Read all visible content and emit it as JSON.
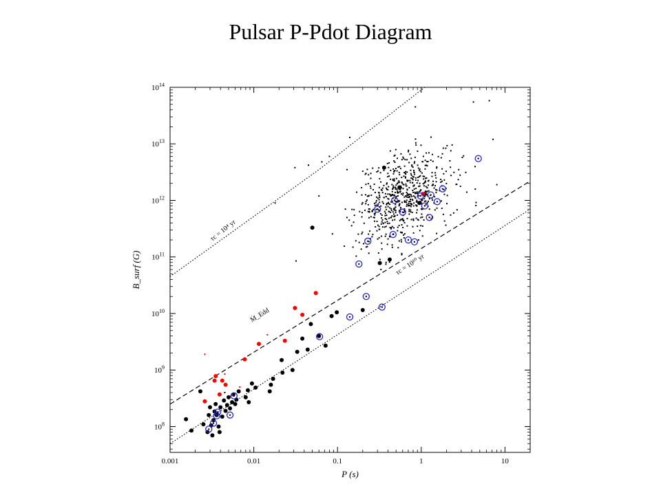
{
  "slide": {
    "title": "Pulsar P-Pdot Diagram"
  },
  "chart_data": {
    "type": "scatter",
    "title": "",
    "xlabel": "P  (s)",
    "ylabel": "B_surf  (G)",
    "x_scale": "log",
    "y_scale": "log",
    "xlim": [
      0.001,
      20
    ],
    "ylim": [
      35000000.0,
      100000000000000.0
    ],
    "grid": false,
    "x_ticks": [
      {
        "value": 0.001,
        "label": "0.001"
      },
      {
        "value": 0.01,
        "label": "0.01"
      },
      {
        "value": 0.1,
        "label": "0.1"
      },
      {
        "value": 1,
        "label": "1"
      },
      {
        "value": 10,
        "label": "10"
      }
    ],
    "y_ticks": [
      {
        "value": 100000000.0,
        "base": "10",
        "exp": "8"
      },
      {
        "value": 1000000000.0,
        "base": "10",
        "exp": "9"
      },
      {
        "value": 10000000000.0,
        "base": "10",
        "exp": "10"
      },
      {
        "value": 100000000000.0,
        "base": "10",
        "exp": "11"
      },
      {
        "value": 1000000000000.0,
        "base": "10",
        "exp": "12"
      },
      {
        "value": 10000000000000.0,
        "base": "10",
        "exp": "13"
      },
      {
        "value": 100000000000000.0,
        "base": "10",
        "exp": "14"
      }
    ],
    "reference_lines": [
      {
        "label": "τc = 10⁴ yr",
        "style": "dotted",
        "x": [
          0.001,
          0.06,
          1.1
        ],
        "y": [
          45000000000.0,
          3500000000000.0,
          100000000000000.0
        ]
      },
      {
        "label": "Ṁ_Edd",
        "style": "dashed",
        "x": [
          0.001,
          20
        ],
        "y": [
          250000000.0,
          2200000000000.0
        ]
      },
      {
        "label": "τc = 10¹⁰ yr",
        "style": "dotted",
        "x": [
          0.001,
          20
        ],
        "y": [
          50000000.0,
          700000000000.0
        ]
      }
    ],
    "annotations": [
      {
        "text": "τc = 10⁴ yr",
        "x": 0.0032,
        "y": 190000000000.0
      },
      {
        "text": "Ṁ_Edd",
        "x": 0.0095,
        "y": 7000000000.0
      },
      {
        "text": "τc = 10¹⁰ yr",
        "x": 0.52,
        "y": 48000000000.0
      }
    ],
    "series": [
      {
        "kind": "isolated",
        "color": "#000000",
        "marker": "small-dot",
        "cluster": {
          "count": 650,
          "x_center_log10": -0.22,
          "x_spread_log10": 0.28,
          "y_center_log10": 12.05,
          "y_spread_log10": 0.38,
          "seed": 7
        },
        "points": [
          {
            "x": 0.0045,
            "y": 400000000.0
          },
          {
            "x": 0.018,
            "y": 900000000000.0
          },
          {
            "x": 0.031,
            "y": 3800000000000.0
          },
          {
            "x": 0.032,
            "y": 85000000000.0
          },
          {
            "x": 0.045,
            "y": 4200000000000.0
          },
          {
            "x": 0.06,
            "y": 1200000000000.0
          },
          {
            "x": 0.065,
            "y": 4800000000000.0
          },
          {
            "x": 0.08,
            "y": 6000000000000.0
          },
          {
            "x": 0.14,
            "y": 13000000000000.0
          },
          {
            "x": 0.13,
            "y": 3500000000000.0
          },
          {
            "x": 0.85,
            "y": 45000000000000.0
          },
          {
            "x": 4.2,
            "y": 55000000000000.0
          },
          {
            "x": 6.5,
            "y": 58000000000000.0
          },
          {
            "x": 8.0,
            "y": 1900000000000.0
          },
          {
            "x": 7.2,
            "y": 12000000000000.0
          },
          {
            "x": 0.25,
            "y": 3000000000000.0
          },
          {
            "x": 0.22,
            "y": 150000000000.0
          },
          {
            "x": 0.38,
            "y": 80000000000.0
          },
          {
            "x": 0.9,
            "y": 350000000000.0
          },
          {
            "x": 3.5,
            "y": 1400000000000.0
          },
          {
            "x": 2.8,
            "y": 3500000000000.0
          },
          {
            "x": 1.5,
            "y": 2500000000000.0
          },
          {
            "x": 0.33,
            "y": 60000000000.0
          }
        ]
      },
      {
        "kind": "binary",
        "color": "#000000",
        "marker": "filled-circle",
        "points": [
          {
            "x": 0.00155,
            "y": 135000000.0
          },
          {
            "x": 0.0018,
            "y": 85000000.0
          },
          {
            "x": 0.0023,
            "y": 420000000.0
          },
          {
            "x": 0.0025,
            "y": 110000000.0
          },
          {
            "x": 0.0028,
            "y": 80000000.0
          },
          {
            "x": 0.0029,
            "y": 160000000.0
          },
          {
            "x": 0.003,
            "y": 220000000.0
          },
          {
            "x": 0.0031,
            "y": 105000000.0
          },
          {
            "x": 0.0032,
            "y": 70000000.0
          },
          {
            "x": 0.0033,
            "y": 130000000.0
          },
          {
            "x": 0.0034,
            "y": 185000000.0
          },
          {
            "x": 0.0035,
            "y": 250000000.0
          },
          {
            "x": 0.0036,
            "y": 160000000.0
          },
          {
            "x": 0.0038,
            "y": 100000000.0
          },
          {
            "x": 0.0039,
            "y": 80000000.0
          },
          {
            "x": 0.004,
            "y": 220000000.0
          },
          {
            "x": 0.0042,
            "y": 150000000.0
          },
          {
            "x": 0.0044,
            "y": 290000000.0
          },
          {
            "x": 0.0046,
            "y": 190000000.0
          },
          {
            "x": 0.0048,
            "y": 240000000.0
          },
          {
            "x": 0.005,
            "y": 330000000.0
          },
          {
            "x": 0.0052,
            "y": 210000000.0
          },
          {
            "x": 0.0055,
            "y": 270000000.0
          },
          {
            "x": 0.0057,
            "y": 370000000.0
          },
          {
            "x": 0.006,
            "y": 250000000.0
          },
          {
            "x": 0.0062,
            "y": 300000000.0
          },
          {
            "x": 0.0066,
            "y": 420000000.0
          },
          {
            "x": 0.008,
            "y": 330000000.0
          },
          {
            "x": 0.0085,
            "y": 440000000.0
          },
          {
            "x": 0.0087,
            "y": 270000000.0
          },
          {
            "x": 0.0095,
            "y": 580000000.0
          },
          {
            "x": 0.0105,
            "y": 490000000.0
          },
          {
            "x": 0.0155,
            "y": 420000000.0
          },
          {
            "x": 0.016,
            "y": 550000000.0
          },
          {
            "x": 0.017,
            "y": 700000000.0
          },
          {
            "x": 0.0215,
            "y": 1500000000.0
          },
          {
            "x": 0.022,
            "y": 900000000.0
          },
          {
            "x": 0.029,
            "y": 1000000000.0
          },
          {
            "x": 0.033,
            "y": 2100000000.0
          },
          {
            "x": 0.038,
            "y": 3600000000.0
          },
          {
            "x": 0.044,
            "y": 2300000000.0
          },
          {
            "x": 0.048,
            "y": 6500000000.0
          },
          {
            "x": 0.05,
            "y": 330000000000.0
          },
          {
            "x": 0.06,
            "y": 4000000000.0
          },
          {
            "x": 0.072,
            "y": 2700000000.0
          },
          {
            "x": 0.085,
            "y": 9000000000.0
          },
          {
            "x": 0.098,
            "y": 10500000000.0
          },
          {
            "x": 0.2,
            "y": 11500000000.0
          },
          {
            "x": 0.32,
            "y": 78000000000.0
          },
          {
            "x": 0.42,
            "y": 90000000000.0
          },
          {
            "x": 0.36,
            "y": 3800000000000.0
          },
          {
            "x": 0.55,
            "y": 1700000000000.0
          },
          {
            "x": 0.95,
            "y": 900000000000.0
          },
          {
            "x": 1.1,
            "y": 1300000000000.0
          }
        ]
      },
      {
        "kind": "globular-cluster",
        "color": "#ff0000",
        "marker": "filled-circle",
        "points": [
          {
            "x": 0.0026,
            "y": 280000000.0
          },
          {
            "x": 0.0034,
            "y": 650000000.0
          },
          {
            "x": 0.0035,
            "y": 780000000.0
          },
          {
            "x": 0.0039,
            "y": 370000000.0
          },
          {
            "x": 0.0042,
            "y": 650000000.0
          },
          {
            "x": 0.0046,
            "y": 550000000.0
          },
          {
            "x": 0.0078,
            "y": 1550000000.0
          },
          {
            "x": 0.0115,
            "y": 2900000000.0
          },
          {
            "x": 0.0235,
            "y": 3300000000.0
          },
          {
            "x": 0.031,
            "y": 12500000000.0
          },
          {
            "x": 0.038,
            "y": 9500000000.0
          },
          {
            "x": 0.055,
            "y": 23000000000.0
          },
          {
            "x": 1.05,
            "y": 1300000000000.0
          }
        ]
      },
      {
        "kind": "globular-cluster-small",
        "color": "#ff0000",
        "marker": "small-dot",
        "points": [
          {
            "x": 0.0026,
            "y": 1900000000.0
          },
          {
            "x": 0.0045,
            "y": 850000000.0
          },
          {
            "x": 0.0055,
            "y": 360000000.0
          },
          {
            "x": 0.0068,
            "y": 500000000.0
          },
          {
            "x": 0.0145,
            "y": 4200000000.0
          }
        ]
      },
      {
        "kind": "other",
        "color": "#2222cc",
        "marker": "circled-dot",
        "points": [
          {
            "x": 0.0029,
            "y": 90000000.0
          },
          {
            "x": 0.0033,
            "y": 115000000.0
          },
          {
            "x": 0.0036,
            "y": 155000000.0
          },
          {
            "x": 0.0037,
            "y": 180000000.0
          },
          {
            "x": 0.0052,
            "y": 160000000.0
          },
          {
            "x": 0.0058,
            "y": 350000000.0
          },
          {
            "x": 0.061,
            "y": 3900000000.0
          },
          {
            "x": 0.14,
            "y": 8700000000.0
          },
          {
            "x": 0.18,
            "y": 75000000000.0
          },
          {
            "x": 0.22,
            "y": 20000000000.0
          },
          {
            "x": 0.23,
            "y": 190000000000.0
          },
          {
            "x": 0.3,
            "y": 700000000000.0
          },
          {
            "x": 0.34,
            "y": 13000000000.0
          },
          {
            "x": 0.46,
            "y": 250000000000.0
          },
          {
            "x": 0.48,
            "y": 1000000000000.0
          },
          {
            "x": 0.6,
            "y": 620000000000.0
          },
          {
            "x": 0.7,
            "y": 200000000000.0
          },
          {
            "x": 0.83,
            "y": 185000000000.0
          },
          {
            "x": 0.98,
            "y": 1200000000000.0
          },
          {
            "x": 1.1,
            "y": 800000000000.0
          },
          {
            "x": 1.25,
            "y": 500000000000.0
          },
          {
            "x": 1.3,
            "y": 1250000000000.0
          },
          {
            "x": 1.55,
            "y": 950000000000.0
          },
          {
            "x": 1.8,
            "y": 1600000000000.0
          },
          {
            "x": 4.8,
            "y": 5500000000000.0
          }
        ]
      }
    ]
  }
}
